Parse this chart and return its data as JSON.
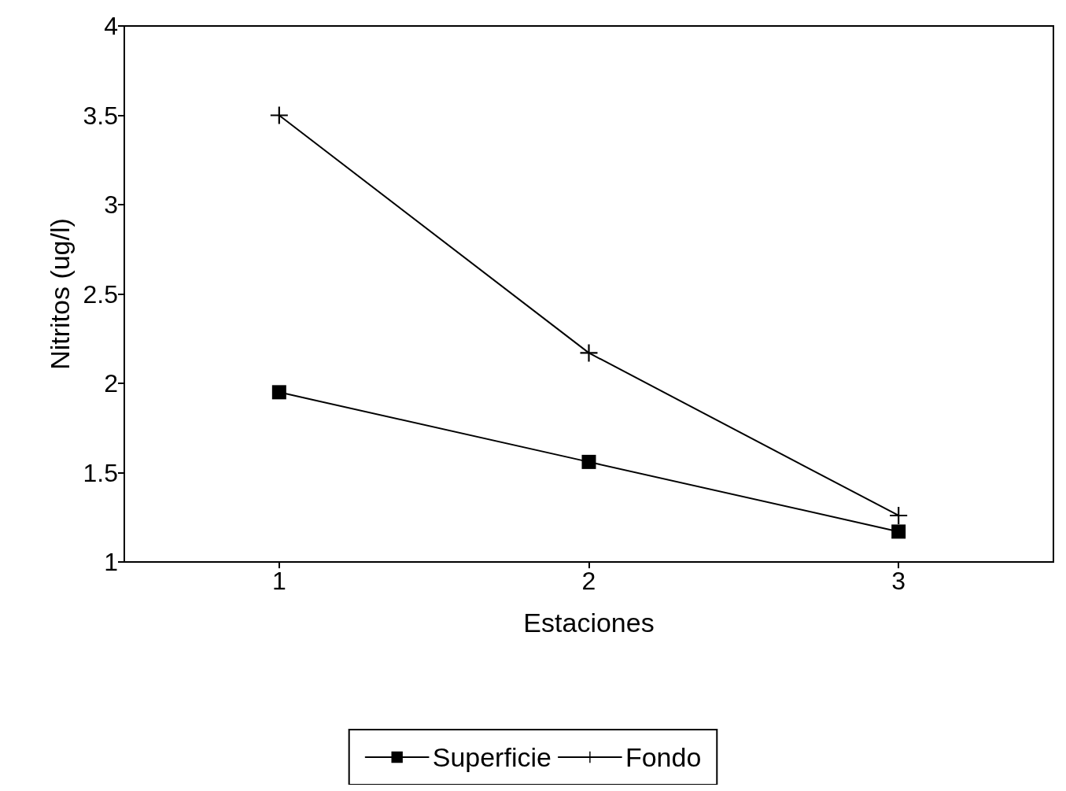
{
  "chart_data": {
    "type": "line",
    "xlabel": "Estaciones",
    "ylabel": "Nitritos (ug/l)",
    "x": [
      1,
      2,
      3
    ],
    "xlim": [
      0.5,
      3.5
    ],
    "xticks": [
      1,
      2,
      3
    ],
    "ylim": [
      1,
      4
    ],
    "yticks": [
      1,
      1.5,
      2,
      2.5,
      3,
      3.5,
      4
    ],
    "series": [
      {
        "name": "Superficie",
        "color": "#000000",
        "values": [
          1.95,
          1.56,
          1.17
        ],
        "marker": "square"
      },
      {
        "name": "Fondo",
        "color": "#000000",
        "values": [
          3.5,
          2.17,
          1.26
        ],
        "marker": "cross"
      }
    ],
    "legend": "bottom",
    "grid": false,
    "line_style": "solid"
  }
}
